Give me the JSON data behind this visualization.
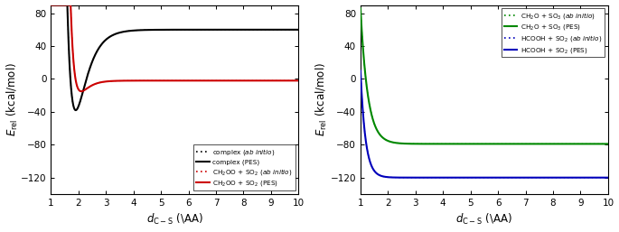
{
  "left_panel": {
    "xlim": [
      1,
      10
    ],
    "ylim": [
      -140,
      90
    ],
    "yticks": [
      -120,
      -80,
      -40,
      0,
      40,
      80
    ],
    "xticks": [
      1,
      2,
      3,
      4,
      5,
      6,
      7,
      8,
      9,
      10
    ],
    "xlabel": "$d_{\\mathrm{C-S}}$ (\\AA)",
    "ylabel": "$E_{\\mathrm{rel}}$ (kcal/mol)",
    "complex_asymptote": 60.0,
    "complex_min_x": 1.9,
    "complex_min_y": -38.0,
    "ch2oo_asymptote": -2.0,
    "ch2oo_min_x": 2.1,
    "ch2oo_min_y": -15.0
  },
  "right_panel": {
    "xlim": [
      1,
      10
    ],
    "ylim": [
      -140,
      90
    ],
    "yticks": [
      -120,
      -80,
      -40,
      0,
      40,
      80
    ],
    "xticks": [
      1,
      2,
      3,
      4,
      5,
      6,
      7,
      8,
      9,
      10
    ],
    "xlabel": "$d_{\\mathrm{C-S}}$ (\\AA)",
    "ylabel": "$E_{\\mathrm{rel}}$ (kcal/mol)",
    "ch2o_so3_asymptote": -79.0,
    "hcooh_so2_asymptote": -120.0
  },
  "colors": {
    "black": "#000000",
    "red": "#cc0000",
    "green": "#008800",
    "blue": "#0000bb"
  },
  "figsize": [
    6.85,
    2.57
  ],
  "dpi": 100
}
